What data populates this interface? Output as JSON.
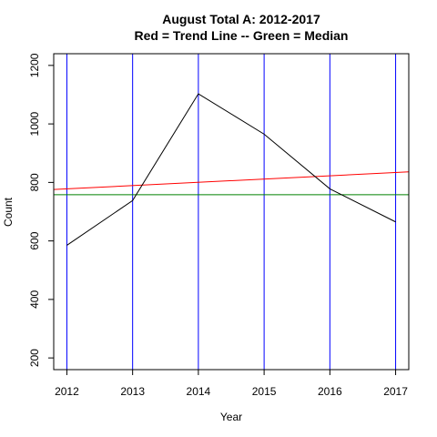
{
  "chart_data": {
    "type": "line",
    "title": "August Total A: 2012-2017",
    "subtitle": "Red = Trend Line -- Green = Median",
    "xlabel": "Year",
    "ylabel": "Count",
    "x": [
      2012,
      2013,
      2014,
      2015,
      2016,
      2017
    ],
    "x_tick_labels": [
      "2012",
      "2013",
      "2014",
      "2015",
      "2016",
      "2017"
    ],
    "xlim": [
      2011.8,
      2017.2
    ],
    "ylim": [
      160,
      1240
    ],
    "y_ticks": [
      200,
      400,
      600,
      800,
      1000,
      1200
    ],
    "y_tick_labels": [
      "200",
      "400",
      "600",
      "800",
      "1000",
      "1200"
    ],
    "series": [
      {
        "values": [
          585,
          738,
          1103,
          965,
          778,
          665
        ],
        "color": "#000000"
      }
    ],
    "trend_line": {
      "start": [
        2012,
        778
      ],
      "end": [
        2017.2,
        836
      ],
      "color": "#ff0000"
    },
    "median_line": {
      "value": 758,
      "color": "#008000"
    },
    "vertical_lines": {
      "at": [
        2012,
        2013,
        2014,
        2015,
        2016,
        2017
      ],
      "color": "#0000ff"
    },
    "grid": false,
    "legend": "none"
  }
}
